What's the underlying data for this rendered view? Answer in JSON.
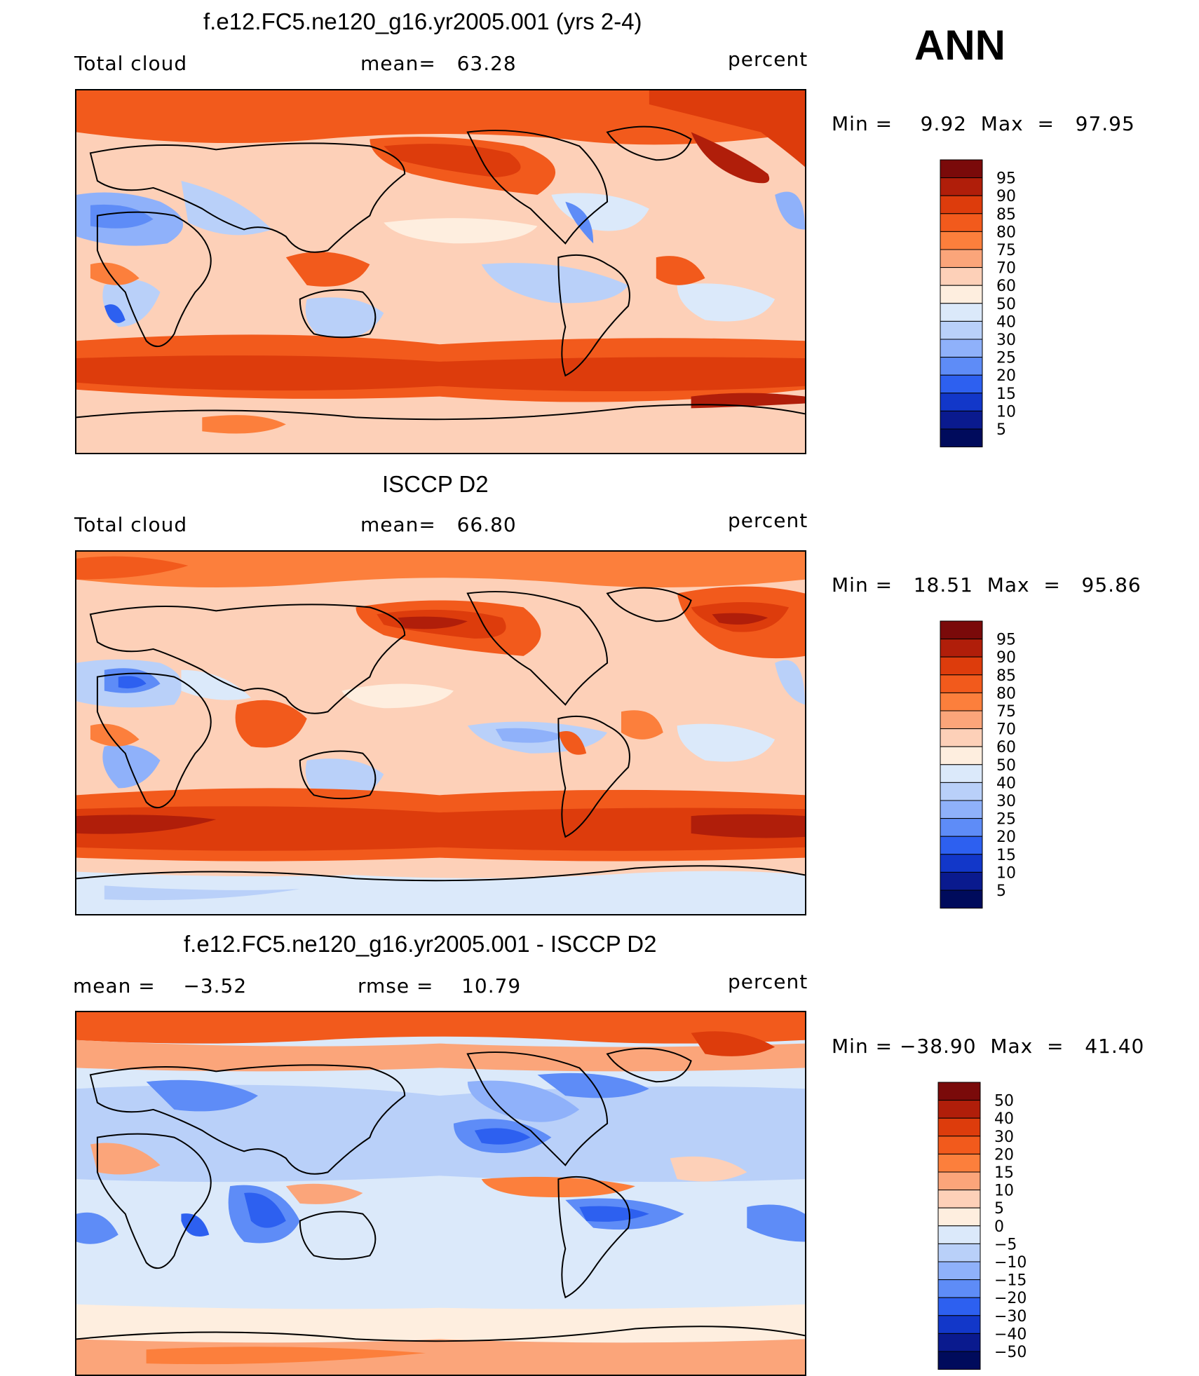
{
  "season": "ANN",
  "units": "percent",
  "panels": [
    {
      "id": "model",
      "title": "f.e12.FC5.ne120_g16.yr2005.001 (yrs 2-4)",
      "left_label": "Total cloud",
      "center_label": "mean=   63.28",
      "right_label": "percent",
      "minmax": "Min =    9.92  Max  =   97.95",
      "colorbar": {
        "levels": [
          "95",
          "90",
          "85",
          "80",
          "75",
          "70",
          "60",
          "50",
          "40",
          "30",
          "25",
          "20",
          "15",
          "10",
          "5"
        ],
        "colors": [
          "#7a0a0a",
          "#b01e0a",
          "#dd3c0c",
          "#f25a1c",
          "#fc7f3c",
          "#fba57a",
          "#fdd0b8",
          "#feeedf",
          "#dbe9fa",
          "#b9d0f9",
          "#8fb1fa",
          "#5e8cf7",
          "#2d60f0",
          "#1237c9",
          "#0a1a8e",
          "#000b5c"
        ]
      }
    },
    {
      "id": "obs",
      "title": "ISCCP D2",
      "left_label": "Total cloud",
      "center_label": "mean=   66.80",
      "right_label": "percent",
      "minmax": "Min =   18.51  Max  =   95.86",
      "colorbar": {
        "levels": [
          "95",
          "90",
          "85",
          "80",
          "75",
          "70",
          "60",
          "50",
          "40",
          "30",
          "25",
          "20",
          "15",
          "10",
          "5"
        ],
        "colors": [
          "#7a0a0a",
          "#b01e0a",
          "#dd3c0c",
          "#f25a1c",
          "#fc7f3c",
          "#fba57a",
          "#fdd0b8",
          "#feeedf",
          "#dbe9fa",
          "#b9d0f9",
          "#8fb1fa",
          "#5e8cf7",
          "#2d60f0",
          "#1237c9",
          "#0a1a8e",
          "#000b5c"
        ]
      }
    },
    {
      "id": "diff",
      "title": "f.e12.FC5.ne120_g16.yr2005.001 - ISCCP D2",
      "left_label": "mean =    −3.52",
      "center_label": "rmse =    10.79",
      "right_label": "percent",
      "minmax": "Min = −38.90  Max  =   41.40",
      "colorbar": {
        "levels": [
          "50",
          "40",
          "30",
          "20",
          "15",
          "10",
          "5",
          "0",
          "−5",
          "−10",
          "−15",
          "−20",
          "−30",
          "−40",
          "−50"
        ],
        "colors": [
          "#7a0a0a",
          "#b01e0a",
          "#dd3c0c",
          "#f25a1c",
          "#fc7f3c",
          "#fba57a",
          "#fdd0b8",
          "#feeedf",
          "#dbe9fa",
          "#b9d0f9",
          "#8fb1fa",
          "#5e8cf7",
          "#2d60f0",
          "#1237c9",
          "#0a1a8e",
          "#000b5c"
        ]
      }
    }
  ]
}
